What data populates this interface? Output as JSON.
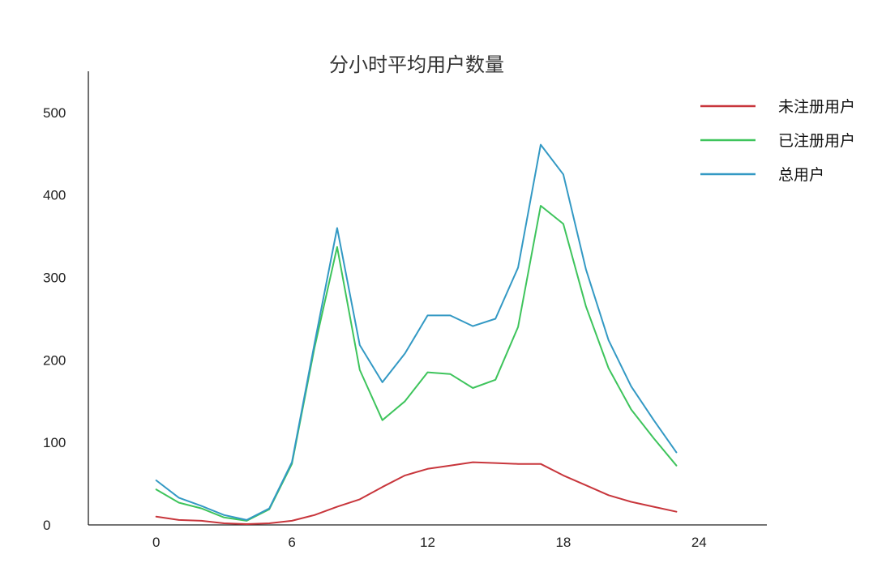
{
  "chart_data": {
    "type": "line",
    "title": "分小时平均用户数量",
    "xlabel": "",
    "ylabel": "",
    "xlim": [
      -3,
      27
    ],
    "ylim": [
      0,
      550
    ],
    "xticks": [
      0,
      6,
      12,
      18,
      24
    ],
    "yticks": [
      0,
      100,
      200,
      300,
      400,
      500
    ],
    "grid": false,
    "legend_position": "top-right",
    "x": [
      0,
      1,
      2,
      3,
      4,
      5,
      6,
      7,
      8,
      9,
      10,
      11,
      12,
      13,
      14,
      15,
      16,
      17,
      18,
      19,
      20,
      21,
      22,
      23
    ],
    "series": [
      {
        "name": "未注册用户",
        "color": "#c8363c",
        "values": [
          10,
          6,
          5,
          2,
          1,
          2,
          5,
          12,
          22,
          31,
          46,
          60,
          68,
          72,
          76,
          75,
          74,
          74,
          60,
          48,
          36,
          28,
          22,
          16
        ]
      },
      {
        "name": "已注册用户",
        "color": "#3ec45c",
        "values": [
          43,
          27,
          20,
          9,
          5,
          19,
          74,
          215,
          337,
          188,
          127,
          150,
          185,
          183,
          166,
          176,
          240,
          387,
          365,
          265,
          190,
          140,
          105,
          72
        ]
      },
      {
        "name": "总用户",
        "color": "#3399c4",
        "values": [
          54,
          33,
          23,
          12,
          6,
          20,
          76,
          220,
          360,
          218,
          173,
          208,
          254,
          254,
          241,
          250,
          312,
          461,
          425,
          310,
          224,
          168,
          127,
          88
        ]
      }
    ]
  }
}
